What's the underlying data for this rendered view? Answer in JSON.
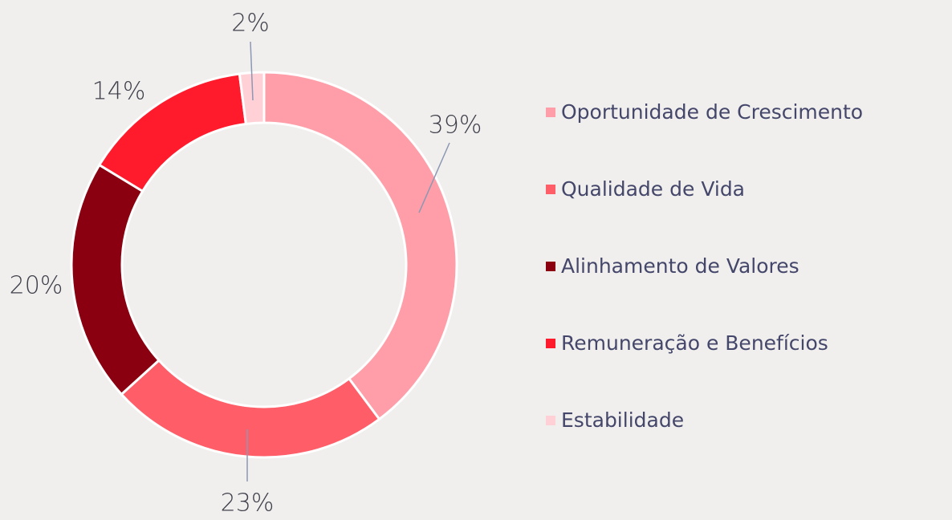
{
  "chart_data": {
    "type": "donut",
    "categories": [
      "Oportunidade de Crescimento",
      "Qualidade de Vida",
      "Alinhamento de Valores",
      "Remuneração e Benefícios",
      "Estabilidade"
    ],
    "values": [
      39,
      23,
      20,
      14,
      2
    ],
    "value_labels": [
      "39%",
      "23%",
      "20%",
      "14%",
      "2%"
    ],
    "colors": [
      "#ff9ea8",
      "#ff5d68",
      "#8a0010",
      "#ff1a2c",
      "#ffd1d7"
    ],
    "legend": "right"
  }
}
